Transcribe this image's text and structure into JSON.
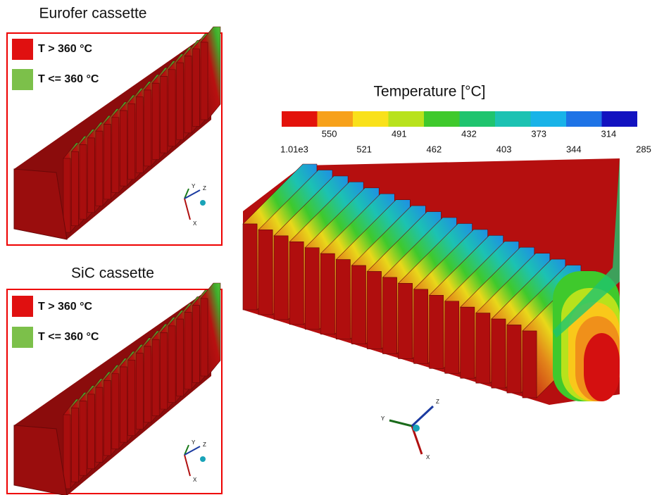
{
  "panels": [
    {
      "title": "Eurofer cassette",
      "legend": [
        {
          "label": "T > 360 °C"
        },
        {
          "label": "T <= 360 °C"
        }
      ],
      "triad": {
        "x": "X",
        "y": "Y",
        "z": "Z"
      }
    },
    {
      "title": "SiC cassette",
      "legend": [
        {
          "label": "T > 360 °C"
        },
        {
          "label": "T <= 360 °C"
        }
      ],
      "triad": {
        "x": "X",
        "y": "Y",
        "z": "Z"
      }
    }
  ],
  "main": {
    "title": "Temperature [°C]",
    "colorbar": {
      "colors": [
        "#e3120b",
        "#f7a11a",
        "#f9e11a",
        "#b8e21c",
        "#3fc92c",
        "#1fc46e",
        "#1cc2b2",
        "#19b3e8",
        "#1e73e6",
        "#1212c0"
      ],
      "labels": [
        "1.01e3",
        "550",
        "521",
        "491",
        "462",
        "432",
        "403",
        "373",
        "344",
        "314",
        "285"
      ]
    },
    "triad": {
      "x": "X",
      "y": "Y",
      "z": "Z"
    }
  }
}
